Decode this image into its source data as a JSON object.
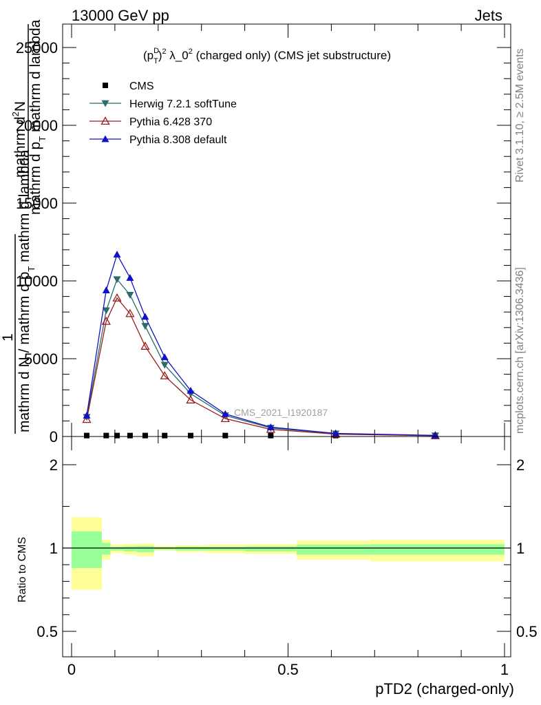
{
  "header": {
    "left": "13000 GeV pp",
    "right": "Jets"
  },
  "side_labels": {
    "rivet": "Rivet 3.1.10, ≥ 2.5M events",
    "mcplots": "mcplots.cern.ch [arXiv:1306.3436]"
  },
  "chart_data": [
    {
      "type": "line",
      "title": "(p_T^D)^2 λ_0^2 (charged only) (CMS jet substructure)",
      "title_parts": {
        "open": "(p",
        "sup": "D",
        "sub": "T",
        "mid": ")",
        "sup2": "2",
        "text": " λ_0",
        "sup3": "2",
        "tail": " (charged only) (CMS jet substructure)"
      },
      "ylabel_lines": [
        "mathrm d²N",
        "mathrm d p_T mathrm d lambda",
        "1",
        "mathrm d N / mathrm d p_T mathrm d lambda"
      ],
      "ylabel_display": {
        "top_a": "mathrm d",
        "top_sup": "2",
        "top_b": "N",
        "mid_a": "mathrm d p",
        "mid_sub": "T",
        "mid_b": " mathrm d lambda",
        "one": "1",
        "bot_a": "mathrm d N / mathrm d p",
        "bot_sub": "T",
        "bot_b": " mathrm d lambda"
      },
      "xlim": [
        0,
        1
      ],
      "ylim": [
        0,
        25000
      ],
      "yticks": [
        0,
        5000,
        10000,
        15000,
        20000,
        25000
      ],
      "ytick_labels": [
        "0",
        "5000",
        "10000",
        "15000",
        "20000",
        "25000"
      ],
      "watermark": "CMS_2021_I1920187",
      "legend_position": "top-left",
      "legend": [
        {
          "name": "CMS",
          "marker": "square-filled",
          "color": "#000000"
        },
        {
          "name": "Herwig 7.2.1 softTune",
          "marker": "triangle-down-filled",
          "color": "#2a6b6b"
        },
        {
          "name": "Pythia 6.428 370",
          "marker": "triangle-up-open",
          "color": "#9b1b1b"
        },
        {
          "name": "Pythia 8.308 default",
          "marker": "triangle-up-filled",
          "color": "#1010c8"
        }
      ],
      "series": [
        {
          "name": "CMS",
          "x": [
            0.035,
            0.08,
            0.105,
            0.135,
            0.17,
            0.215,
            0.275,
            0.355,
            0.46,
            0.61,
            0.84
          ],
          "values": [
            60,
            60,
            60,
            60,
            60,
            60,
            60,
            60,
            60,
            60,
            60
          ]
        },
        {
          "name": "Herwig 7.2.1 softTune",
          "x": [
            0.035,
            0.08,
            0.105,
            0.135,
            0.17,
            0.215,
            0.275,
            0.355,
            0.46,
            0.61,
            0.84
          ],
          "values": [
            1250,
            8100,
            10100,
            9100,
            7100,
            4600,
            2750,
            1350,
            550,
            180,
            60
          ]
        },
        {
          "name": "Pythia 6.428 370",
          "x": [
            0.035,
            0.08,
            0.105,
            0.135,
            0.17,
            0.215,
            0.275,
            0.355,
            0.46,
            0.61,
            0.84
          ],
          "values": [
            1100,
            7400,
            8900,
            7900,
            5800,
            3900,
            2350,
            1150,
            460,
            150,
            50
          ]
        },
        {
          "name": "Pythia 8.308 default",
          "x": [
            0.035,
            0.08,
            0.105,
            0.135,
            0.17,
            0.215,
            0.275,
            0.355,
            0.46,
            0.61,
            0.84
          ],
          "values": [
            1350,
            9400,
            11700,
            10200,
            7700,
            5100,
            2950,
            1450,
            600,
            200,
            70
          ]
        }
      ]
    },
    {
      "type": "area",
      "ylabel": "Ratio to CMS",
      "xlabel": "pTD2 (charged-only)",
      "xlim": [
        0,
        1
      ],
      "ylim": [
        0.3,
        2.3
      ],
      "xticks": [
        0,
        0.5,
        1
      ],
      "xtick_labels": [
        "0",
        "0.5",
        "1"
      ],
      "yticks": [
        0.5,
        1,
        2
      ],
      "ytick_labels": [
        "0.5",
        "1",
        "2"
      ],
      "bins": [
        {
          "x0": 0.0,
          "x1": 0.07,
          "stat_lo": 0.88,
          "stat_hi": 1.2,
          "tot_lo": 0.75,
          "tot_hi": 1.37
        },
        {
          "x0": 0.07,
          "x1": 0.09,
          "stat_lo": 0.96,
          "stat_hi": 1.06,
          "tot_lo": 0.93,
          "tot_hi": 1.1
        },
        {
          "x0": 0.09,
          "x1": 0.12,
          "stat_lo": 0.985,
          "stat_hi": 1.015,
          "tot_lo": 0.97,
          "tot_hi": 1.04
        },
        {
          "x0": 0.12,
          "x1": 0.15,
          "stat_lo": 0.98,
          "stat_hi": 1.02,
          "tot_lo": 0.96,
          "tot_hi": 1.05
        },
        {
          "x0": 0.15,
          "x1": 0.19,
          "stat_lo": 0.975,
          "stat_hi": 1.025,
          "tot_lo": 0.95,
          "tot_hi": 1.055
        },
        {
          "x0": 0.19,
          "x1": 0.24,
          "stat_lo": 0.99,
          "stat_hi": 1.01,
          "tot_lo": 0.985,
          "tot_hi": 1.025
        },
        {
          "x0": 0.24,
          "x1": 0.31,
          "stat_lo": 0.985,
          "stat_hi": 1.015,
          "tot_lo": 0.975,
          "tot_hi": 1.035
        },
        {
          "x0": 0.31,
          "x1": 0.4,
          "stat_lo": 0.985,
          "stat_hi": 1.015,
          "tot_lo": 0.97,
          "tot_hi": 1.04
        },
        {
          "x0": 0.4,
          "x1": 0.52,
          "stat_lo": 0.98,
          "stat_hi": 1.02,
          "tot_lo": 0.965,
          "tot_hi": 1.045
        },
        {
          "x0": 0.52,
          "x1": 0.69,
          "stat_lo": 0.96,
          "stat_hi": 1.04,
          "tot_lo": 0.93,
          "tot_hi": 1.09
        },
        {
          "x0": 0.69,
          "x1": 1.0,
          "stat_lo": 0.96,
          "stat_hi": 1.045,
          "tot_lo": 0.92,
          "tot_hi": 1.1
        }
      ],
      "band_colors": {
        "total": "#ffff99",
        "stat": "#99ff99"
      }
    }
  ]
}
